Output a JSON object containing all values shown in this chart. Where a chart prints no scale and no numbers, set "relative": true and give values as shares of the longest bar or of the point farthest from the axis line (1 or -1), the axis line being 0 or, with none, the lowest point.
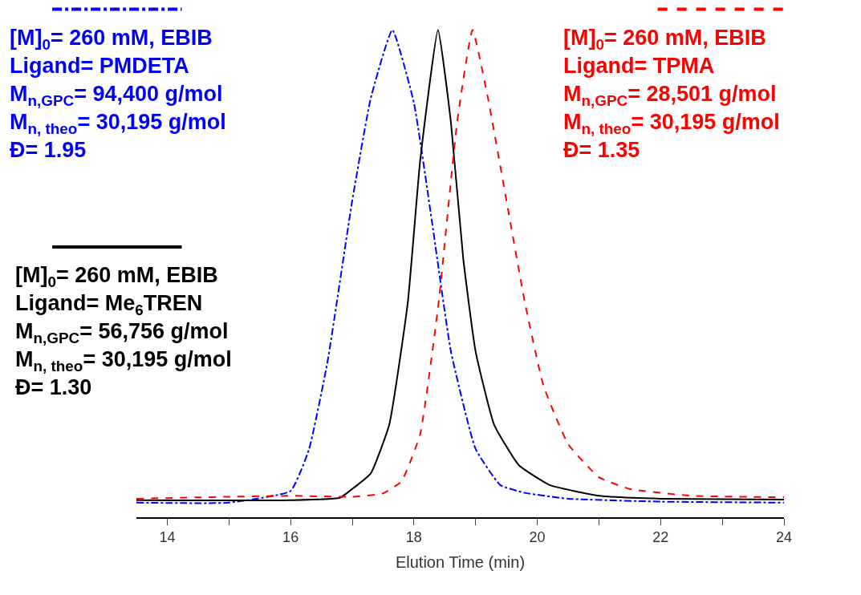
{
  "chart_data": {
    "type": "line",
    "relative": true,
    "xlabel": "Elution Time (min)",
    "xlim": [
      13.5,
      24
    ],
    "xticks": [
      14,
      {
        "value": 15,
        "label": null
      },
      16,
      {
        "value": 17,
        "label": null
      },
      18,
      {
        "value": 19,
        "label": null
      },
      20,
      {
        "value": 21,
        "label": null
      },
      22,
      {
        "value": 23,
        "label": null
      },
      24
    ],
    "tick_labels": "x",
    "marker": "none",
    "series": [
      {
        "name": "[M]$_{0}$= 260 mM, EBIB\nLigand= PMDETA\nM$_{n,GPC}$= 94,400 g/mol\nM$_{n, theo}$= 30,195 g/mol\nĐ= 1.95",
        "color": "#0000ff",
        "line_style": "dashdot",
        "x": [
          13.5,
          15.0,
          16.0,
          16.3,
          16.6,
          17.0,
          17.3,
          17.65,
          18.0,
          18.3,
          18.6,
          19.0,
          19.4,
          19.8,
          20.5,
          22.0,
          24.0
        ],
        "values": [
          0.03,
          0.03,
          0.054,
          0.14,
          0.32,
          0.65,
          0.86,
          1.0,
          0.85,
          0.6,
          0.34,
          0.14,
          0.066,
          0.05,
          0.038,
          0.032,
          0.03
        ]
      },
      {
        "name": "[M]$_{0}$= 260 mM, EBIB\nLigand= Me$_{6}$TREN\nM$_{n,GPC}$= 56,756 g/mol\nM$_{n, theo}$= 30,195 g/mol\nĐ= 1.30",
        "color": "#000000",
        "line_style": "solid",
        "x": [
          13.5,
          16.0,
          16.8,
          17.0,
          17.3,
          17.6,
          17.9,
          18.1,
          18.39,
          18.6,
          18.8,
          19.0,
          19.3,
          19.7,
          20.2,
          21.0,
          22.0,
          24.0
        ],
        "values": [
          0.035,
          0.035,
          0.04,
          0.058,
          0.09,
          0.19,
          0.44,
          0.73,
          1.0,
          0.81,
          0.53,
          0.34,
          0.19,
          0.107,
          0.066,
          0.044,
          0.038,
          0.036
        ]
      },
      {
        "name": "[M]$_{0}$= 260 mM, EBIB\nLigand= TPMA\nM$_{n,GPC}$= 28,501 g/mol\nM$_{n, theo}$= 30,195 g/mol\nĐ= 1.35",
        "color": "#ff0000",
        "line_style": "dashed",
        "x": [
          13.5,
          15.0,
          16.0,
          17.0,
          17.5,
          17.8,
          18.1,
          18.4,
          18.7,
          18.95,
          19.2,
          19.5,
          19.8,
          20.1,
          20.5,
          21.0,
          21.5,
          22.5,
          24.0
        ],
        "values": [
          0.038,
          0.042,
          0.044,
          0.042,
          0.049,
          0.074,
          0.17,
          0.44,
          0.81,
          1.0,
          0.86,
          0.65,
          0.44,
          0.27,
          0.15,
          0.082,
          0.058,
          0.044,
          0.041
        ]
      }
    ]
  }
}
